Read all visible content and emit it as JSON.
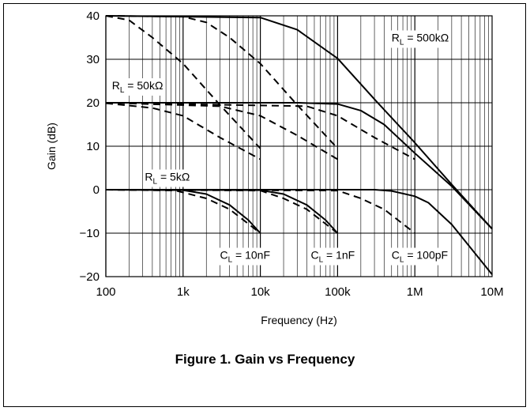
{
  "chart_data": {
    "type": "line",
    "title": "",
    "xlabel": "Frequency (Hz)",
    "ylabel": "Gain (dB)",
    "xscale": "log",
    "xlim": [
      100,
      10000000
    ],
    "ylim": [
      -20,
      40
    ],
    "grid": true,
    "x_tick_labels": [
      "100",
      "1k",
      "10k",
      "100k",
      "1M",
      "10M"
    ],
    "y_tick_labels": [
      "40",
      "30",
      "20",
      "10",
      "0",
      "−10",
      "−20"
    ],
    "legend": "none",
    "caption": "Figure 1. Gain vs Frequency",
    "annotations": [
      {
        "main": "R",
        "sub": "L",
        "rest": " = 500kΩ",
        "x": 500000,
        "y": 35
      },
      {
        "main": "R",
        "sub": "L",
        "rest": " = 50kΩ",
        "x": 120,
        "y": 24
      },
      {
        "main": "R",
        "sub": "L",
        "rest": " = 5kΩ",
        "x": 320,
        "y": 3
      },
      {
        "main": "C",
        "sub": "L",
        "rest": " = 10nF",
        "x": 3000,
        "y": -15
      },
      {
        "main": "C",
        "sub": "L",
        "rest": " = 1nF",
        "x": 45000,
        "y": -15
      },
      {
        "main": "C",
        "sub": "L",
        "rest": " = 100pF",
        "x": 500000,
        "y": -15
      }
    ],
    "series": [
      {
        "style": "solid",
        "x": [
          100,
          10000,
          30000,
          100000,
          300000,
          1000000,
          3000000,
          10000000
        ],
        "y": [
          40,
          39.6,
          36.8,
          30.2,
          20.8,
          10.8,
          1.2,
          -9
        ]
      },
      {
        "style": "solid",
        "x": [
          100,
          30000,
          100000,
          200000,
          400000,
          1000000,
          3000000,
          10000000
        ],
        "y": [
          20,
          20,
          19.7,
          18.2,
          15,
          8.4,
          0.8,
          -9
        ]
      },
      {
        "style": "solid",
        "x": [
          100,
          300000,
          500000,
          1000000,
          1500000,
          3000000,
          10000000
        ],
        "y": [
          0,
          0,
          -0.3,
          -1.5,
          -3,
          -8,
          -19.5
        ]
      },
      {
        "style": "solid",
        "x": [
          100,
          1000,
          2000,
          4000,
          7000,
          10000
        ],
        "y": [
          0,
          -0.1,
          -1,
          -3.5,
          -7,
          -10
        ]
      },
      {
        "style": "solid",
        "x": [
          100,
          10000,
          20000,
          40000,
          70000,
          100000
        ],
        "y": [
          0,
          -0.1,
          -1,
          -3.5,
          -7,
          -10
        ]
      },
      {
        "style": "dashed",
        "x": [
          100,
          200,
          400,
          1000,
          3000,
          10000
        ],
        "y": [
          40,
          39,
          35,
          29,
          19.5,
          9.5
        ]
      },
      {
        "style": "dashed",
        "x": [
          100,
          1000,
          2000,
          4000,
          10000,
          30000,
          100000
        ],
        "y": [
          40,
          39.8,
          38.5,
          35,
          29,
          19.5,
          9.5
        ]
      },
      {
        "style": "dashed",
        "x": [
          100,
          400,
          1000,
          3000,
          10000
        ],
        "y": [
          19.9,
          18.8,
          17,
          12,
          7
        ]
      },
      {
        "style": "dashed",
        "x": [
          100,
          3000,
          10000,
          30000,
          100000
        ],
        "y": [
          20,
          19.2,
          17,
          12.5,
          7
        ]
      },
      {
        "style": "dashed",
        "x": [
          100,
          40000,
          100000,
          300000,
          1000000
        ],
        "y": [
          20,
          19.2,
          17,
          12,
          7
        ]
      },
      {
        "style": "dashed",
        "x": [
          100,
          800,
          2000,
          4000,
          10000
        ],
        "y": [
          0,
          -0.2,
          -2,
          -4.5,
          -10
        ]
      },
      {
        "style": "dashed",
        "x": [
          100,
          10000,
          20000,
          40000,
          100000
        ],
        "y": [
          0,
          -0.2,
          -2,
          -4.5,
          -10
        ]
      },
      {
        "style": "dashed",
        "x": [
          100,
          100000,
          200000,
          400000,
          1000000
        ],
        "y": [
          0,
          -0.2,
          -2,
          -4.5,
          -10
        ]
      }
    ]
  }
}
